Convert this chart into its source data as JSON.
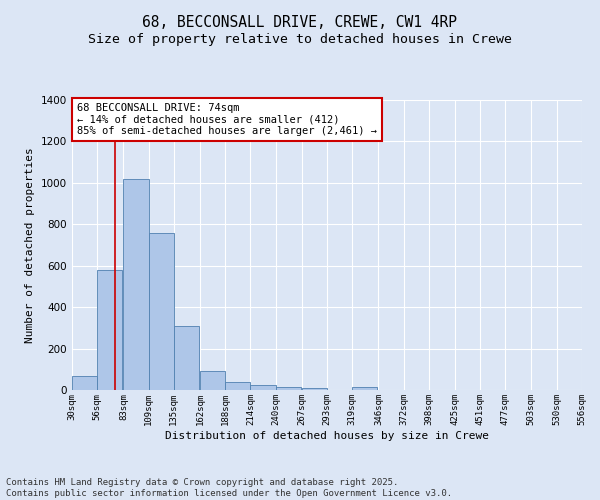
{
  "title_line1": "68, BECCONSALL DRIVE, CREWE, CW1 4RP",
  "title_line2": "Size of property relative to detached houses in Crewe",
  "xlabel": "Distribution of detached houses by size in Crewe",
  "ylabel": "Number of detached properties",
  "bar_color": "#aec6e8",
  "bar_edge_color": "#5080b0",
  "bg_color": "#dce6f5",
  "grid_color": "#ffffff",
  "annotation_line": "68 BECCONSALL DRIVE: 74sqm",
  "annotation_smaller": "← 14% of detached houses are smaller (412)",
  "annotation_larger": "85% of semi-detached houses are larger (2,461) →",
  "vline_x": 74,
  "vline_color": "#cc0000",
  "bins_left": [
    30,
    56,
    83,
    109,
    135,
    162,
    188,
    214,
    240,
    267,
    293,
    319,
    346,
    372,
    398,
    425,
    451,
    477,
    503,
    530
  ],
  "bin_width": 26,
  "heights": [
    68,
    580,
    1020,
    760,
    310,
    90,
    40,
    25,
    15,
    10,
    0,
    15,
    0,
    0,
    0,
    0,
    0,
    0,
    0,
    0
  ],
  "xlim_left": 30,
  "xlim_right": 556,
  "ylim_top": 1400,
  "yticks": [
    0,
    200,
    400,
    600,
    800,
    1000,
    1200,
    1400
  ],
  "tick_labels": [
    "30sqm",
    "56sqm",
    "83sqm",
    "109sqm",
    "135sqm",
    "162sqm",
    "188sqm",
    "214sqm",
    "240sqm",
    "267sqm",
    "293sqm",
    "319sqm",
    "346sqm",
    "372sqm",
    "398sqm",
    "425sqm",
    "451sqm",
    "477sqm",
    "503sqm",
    "530sqm",
    "556sqm"
  ],
  "tick_positions": [
    30,
    56,
    83,
    109,
    135,
    162,
    188,
    214,
    240,
    267,
    293,
    319,
    346,
    372,
    398,
    425,
    451,
    477,
    503,
    530,
    556
  ],
  "footer_line1": "Contains HM Land Registry data © Crown copyright and database right 2025.",
  "footer_line2": "Contains public sector information licensed under the Open Government Licence v3.0.",
  "annotation_box_color": "#ffffff",
  "annotation_box_edge": "#cc0000",
  "title_fontsize": 10.5,
  "subtitle_fontsize": 9.5,
  "annotation_fontsize": 7.5,
  "footer_fontsize": 6.5,
  "ylabel_fontsize": 8,
  "xlabel_fontsize": 8,
  "tick_fontsize": 6.5,
  "ytick_fontsize": 7.5
}
